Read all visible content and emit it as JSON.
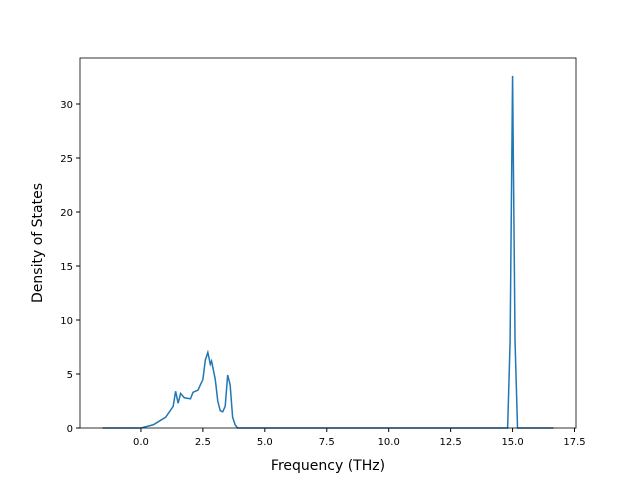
{
  "chart_data": {
    "type": "line",
    "x_label": "Frequency (THz)",
    "y_label": "Density of States",
    "xlim": [
      -2.46,
      17.56
    ],
    "ylim": [
      0,
      34.26
    ],
    "xticks": [
      {
        "value": 0,
        "label": "0.0"
      },
      {
        "value": 2.5,
        "label": "2.5"
      },
      {
        "value": 5,
        "label": "5.0"
      },
      {
        "value": 7.5,
        "label": "7.5"
      },
      {
        "value": 10,
        "label": "10.0"
      },
      {
        "value": 12.5,
        "label": "12.5"
      },
      {
        "value": 15,
        "label": "15.0"
      },
      {
        "value": 17.5,
        "label": "17.5"
      }
    ],
    "yticks": [
      0,
      5,
      10,
      15,
      20,
      25,
      30
    ],
    "series": [
      {
        "color": "#1f77b4",
        "x": [
          -1.55,
          0,
          0.5,
          1.0,
          1.3,
          1.4,
          1.5,
          1.6,
          1.75,
          2.0,
          2.1,
          2.3,
          2.5,
          2.6,
          2.7,
          2.8,
          2.85,
          3.0,
          3.1,
          3.2,
          3.3,
          3.4,
          3.5,
          3.6,
          3.7,
          3.8,
          3.9,
          14.8,
          14.9,
          15.0,
          15.1,
          15.2,
          16.65
        ],
        "values": [
          0,
          0,
          0.3,
          1.0,
          2.0,
          3.4,
          2.3,
          3.2,
          2.8,
          2.7,
          3.3,
          3.5,
          4.5,
          6.3,
          7.0,
          5.9,
          6.2,
          4.5,
          2.5,
          1.6,
          1.5,
          2.0,
          4.9,
          4.0,
          1.0,
          0.3,
          0,
          0,
          8,
          32.6,
          8,
          0,
          0
        ]
      }
    ]
  }
}
